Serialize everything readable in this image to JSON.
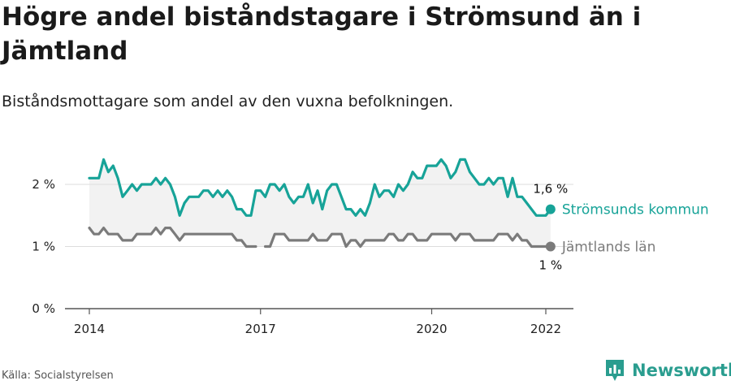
{
  "title": "Högre andel biståndstagare i Strömsund än i Jämtland",
  "subtitle": "Biståndsmottagare som andel av den vuxna befolkningen.",
  "source": "Källa: Socialstyrelsen",
  "brand": {
    "name": "Newsworthy",
    "logo_icon": "newsworthy-logo-icon"
  },
  "colors": {
    "kommun": "#17a398",
    "lan": "#7b7b7b",
    "band": "#f2f2f2",
    "grid": "#dddddd",
    "axis": "#555555"
  },
  "chart_data": {
    "type": "line",
    "title": "Högre andel biståndstagare i Strömsund än i Jämtland",
    "subtitle": "Biståndsmottagare som andel av den vuxna befolkningen.",
    "ylim": [
      0,
      2.5
    ],
    "y_ticks": [
      0,
      1,
      2
    ],
    "y_tick_labels": [
      "0 %",
      "1 %",
      "2 %"
    ],
    "xlim": [
      2014,
      2022.4
    ],
    "x_ticks": [
      2014,
      2017,
      2020,
      2022
    ],
    "x_tick_labels": [
      "2014",
      "2017",
      "2020",
      "2022"
    ],
    "grid": true,
    "series": [
      {
        "name": "Strömsunds kommun",
        "color": "#17a398",
        "end_label": "1,6 %",
        "x": [
          2014.0,
          2014.083,
          2014.167,
          2014.25,
          2014.333,
          2014.417,
          2014.5,
          2014.583,
          2014.667,
          2014.75,
          2014.833,
          2014.917,
          2015.0,
          2015.083,
          2015.167,
          2015.25,
          2015.333,
          2015.417,
          2015.5,
          2015.583,
          2015.667,
          2015.75,
          2015.833,
          2015.917,
          2016.0,
          2016.083,
          2016.167,
          2016.25,
          2016.333,
          2016.417,
          2016.5,
          2016.583,
          2016.667,
          2016.75,
          2016.833,
          2016.917,
          2017.0,
          2017.083,
          2017.167,
          2017.25,
          2017.333,
          2017.417,
          2017.5,
          2017.583,
          2017.667,
          2017.75,
          2017.833,
          2017.917,
          2018.0,
          2018.083,
          2018.167,
          2018.25,
          2018.333,
          2018.417,
          2018.5,
          2018.583,
          2018.667,
          2018.75,
          2018.833,
          2018.917,
          2019.0,
          2019.083,
          2019.167,
          2019.25,
          2019.333,
          2019.417,
          2019.5,
          2019.583,
          2019.667,
          2019.75,
          2019.833,
          2019.917,
          2020.0,
          2020.083,
          2020.167,
          2020.25,
          2020.333,
          2020.417,
          2020.5,
          2020.583,
          2020.667,
          2020.75,
          2020.833,
          2020.917,
          2021.0,
          2021.083,
          2021.167,
          2021.25,
          2021.333,
          2021.417,
          2021.5,
          2021.583,
          2021.667,
          2021.75,
          2021.833,
          2021.917,
          2022.0,
          2022.083
        ],
        "values": [
          2.1,
          2.1,
          2.1,
          2.4,
          2.2,
          2.3,
          2.1,
          1.8,
          1.9,
          2.0,
          1.9,
          2.0,
          2.0,
          2.0,
          2.1,
          2.0,
          2.1,
          2.0,
          1.8,
          1.5,
          1.7,
          1.8,
          1.8,
          1.8,
          1.9,
          1.9,
          1.8,
          1.9,
          1.8,
          1.9,
          1.8,
          1.6,
          1.6,
          1.5,
          1.5,
          1.9,
          1.9,
          1.8,
          2.0,
          2.0,
          1.9,
          2.0,
          1.8,
          1.7,
          1.8,
          1.8,
          2.0,
          1.7,
          1.9,
          1.6,
          1.9,
          2.0,
          2.0,
          1.8,
          1.6,
          1.6,
          1.5,
          1.6,
          1.5,
          1.7,
          2.0,
          1.8,
          1.9,
          1.9,
          1.8,
          2.0,
          1.9,
          2.0,
          2.2,
          2.1,
          2.1,
          2.3,
          2.3,
          2.3,
          2.4,
          2.3,
          2.1,
          2.2,
          2.4,
          2.4,
          2.2,
          2.1,
          2.0,
          2.0,
          2.1,
          2.0,
          2.1,
          2.1,
          1.8,
          2.1,
          1.8,
          1.8,
          1.7,
          1.6,
          1.5,
          1.5,
          1.5,
          1.6
        ]
      },
      {
        "name": "Jämtlands län",
        "color": "#7b7b7b",
        "end_label": "1 %",
        "x": [
          2014.0,
          2014.083,
          2014.167,
          2014.25,
          2014.333,
          2014.417,
          2014.5,
          2014.583,
          2014.667,
          2014.75,
          2014.833,
          2014.917,
          2015.0,
          2015.083,
          2015.167,
          2015.25,
          2015.333,
          2015.417,
          2015.5,
          2015.583,
          2015.667,
          2015.75,
          2015.833,
          2015.917,
          2016.0,
          2016.083,
          2016.167,
          2016.25,
          2016.333,
          2016.417,
          2016.5,
          2016.583,
          2016.667,
          2016.75,
          2016.833,
          2016.917,
          2017.0,
          2017.083,
          2017.167,
          2017.25,
          2017.333,
          2017.417,
          2017.5,
          2017.583,
          2017.667,
          2017.75,
          2017.833,
          2017.917,
          2018.0,
          2018.083,
          2018.167,
          2018.25,
          2018.333,
          2018.417,
          2018.5,
          2018.583,
          2018.667,
          2018.75,
          2018.833,
          2018.917,
          2019.0,
          2019.083,
          2019.167,
          2019.25,
          2019.333,
          2019.417,
          2019.5,
          2019.583,
          2019.667,
          2019.75,
          2019.833,
          2019.917,
          2020.0,
          2020.083,
          2020.167,
          2020.25,
          2020.333,
          2020.417,
          2020.5,
          2020.583,
          2020.667,
          2020.75,
          2020.833,
          2020.917,
          2021.0,
          2021.083,
          2021.167,
          2021.25,
          2021.333,
          2021.417,
          2021.5,
          2021.583,
          2021.667,
          2021.75,
          2021.833,
          2021.917,
          2022.0,
          2022.083
        ],
        "values": [
          1.3,
          1.2,
          1.2,
          1.3,
          1.2,
          1.2,
          1.2,
          1.1,
          1.1,
          1.1,
          1.2,
          1.2,
          1.2,
          1.2,
          1.3,
          1.2,
          1.3,
          1.3,
          1.2,
          1.1,
          1.2,
          1.2,
          1.2,
          1.2,
          1.2,
          1.2,
          1.2,
          1.2,
          1.2,
          1.2,
          1.2,
          1.1,
          1.1,
          1.0,
          1.0,
          1.0,
          null,
          1.0,
          1.0,
          1.2,
          1.2,
          1.2,
          1.1,
          1.1,
          1.1,
          1.1,
          1.1,
          1.2,
          1.1,
          1.1,
          1.1,
          1.2,
          1.2,
          1.2,
          1.0,
          1.1,
          1.1,
          1.0,
          1.1,
          1.1,
          1.1,
          1.1,
          1.1,
          1.2,
          1.2,
          1.1,
          1.1,
          1.2,
          1.2,
          1.1,
          1.1,
          1.1,
          1.2,
          1.2,
          1.2,
          1.2,
          1.2,
          1.1,
          1.2,
          1.2,
          1.2,
          1.1,
          1.1,
          1.1,
          1.1,
          1.1,
          1.2,
          1.2,
          1.2,
          1.1,
          1.2,
          1.1,
          1.1,
          1.0,
          1.0,
          1.0,
          1.0,
          1.0
        ]
      }
    ]
  }
}
